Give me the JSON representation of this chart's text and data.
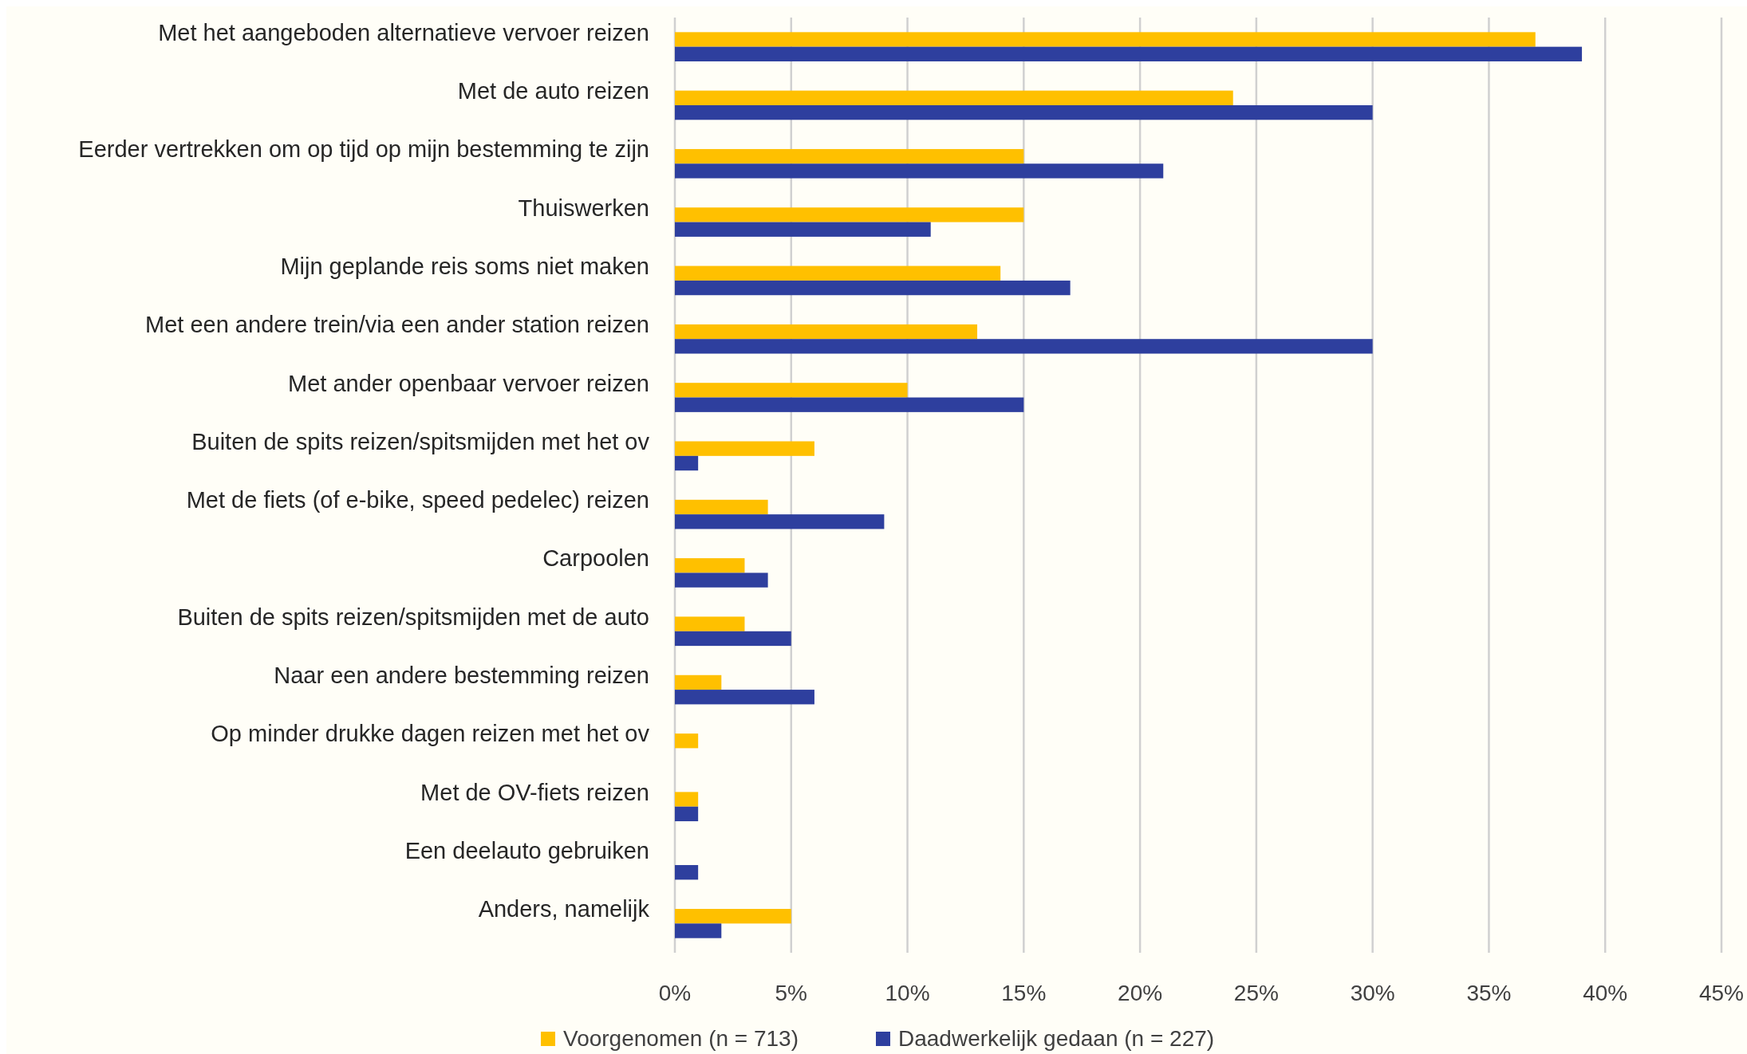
{
  "chart_data": {
    "type": "bar",
    "orientation": "horizontal",
    "categories": [
      "Met het aangeboden alternatieve vervoer reizen",
      "Met de auto reizen",
      "Eerder vertrekken om op tijd op mijn bestemming te zijn",
      "Thuiswerken",
      "Mijn geplande reis soms niet maken",
      "Met een andere trein/via een ander station reizen",
      "Met ander openbaar vervoer reizen",
      "Buiten de spits reizen/spitsmijden met het ov",
      "Met de fiets (of e-bike, speed pedelec) reizen",
      "Carpoolen",
      "Buiten de spits reizen/spitsmijden met de auto",
      "Naar een andere bestemming reizen",
      "Op minder drukke dagen reizen met het ov",
      "Met de OV-fiets reizen",
      "Een deelauto gebruiken",
      "Anders, namelijk"
    ],
    "series": [
      {
        "name": "Voorgenomen (n = 713)",
        "color": "#ffc000",
        "values": [
          37,
          24,
          15,
          15,
          14,
          13,
          10,
          6,
          4,
          3,
          3,
          2,
          1,
          1,
          0,
          5
        ]
      },
      {
        "name": "Daadwerkelijk gedaan (n = 227)",
        "color": "#2e3f9e",
        "values": [
          39,
          30,
          21,
          11,
          17,
          30,
          15,
          1,
          9,
          4,
          5,
          6,
          0,
          1,
          1,
          2
        ]
      }
    ],
    "xlim": [
      0,
      45
    ],
    "xticks": [
      {
        "value": 0,
        "label": "0%"
      },
      {
        "value": 5,
        "label": "5%"
      },
      {
        "value": 10,
        "label": "10%"
      },
      {
        "value": 15,
        "label": "15%"
      },
      {
        "value": 20,
        "label": "20%"
      },
      {
        "value": 25,
        "label": "25%"
      },
      {
        "value": 30,
        "label": "30%"
      },
      {
        "value": 35,
        "label": "35%"
      },
      {
        "value": 40,
        "label": "40%"
      },
      {
        "value": 45,
        "label": "45%"
      }
    ],
    "grid": "x",
    "legend": "bottom"
  }
}
